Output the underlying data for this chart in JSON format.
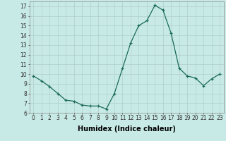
{
  "x": [
    0,
    1,
    2,
    3,
    4,
    5,
    6,
    7,
    8,
    9,
    10,
    11,
    12,
    13,
    14,
    15,
    16,
    17,
    18,
    19,
    20,
    21,
    22,
    23
  ],
  "y": [
    9.8,
    9.3,
    8.7,
    8.0,
    7.3,
    7.2,
    6.8,
    6.7,
    6.7,
    6.4,
    8.0,
    10.6,
    13.2,
    15.0,
    15.5,
    17.1,
    16.6,
    14.2,
    10.6,
    9.8,
    9.6,
    8.8,
    9.5,
    10.0
  ],
  "line_color": "#1a6b5a",
  "marker_color": "#1a6b5a",
  "bg_color": "#c8eae6",
  "grid_color": "#b0ceca",
  "xlabel": "Humidex (Indice chaleur)",
  "xlabel_weight": "bold",
  "xlim": [
    -0.5,
    23.5
  ],
  "ylim": [
    6,
    17.5
  ],
  "yticks": [
    6,
    7,
    8,
    9,
    10,
    11,
    12,
    13,
    14,
    15,
    16,
    17
  ],
  "xticks": [
    0,
    1,
    2,
    3,
    4,
    5,
    6,
    7,
    8,
    9,
    10,
    11,
    12,
    13,
    14,
    15,
    16,
    17,
    18,
    19,
    20,
    21,
    22,
    23
  ],
  "tick_fontsize": 5.5,
  "label_fontsize": 7.0
}
